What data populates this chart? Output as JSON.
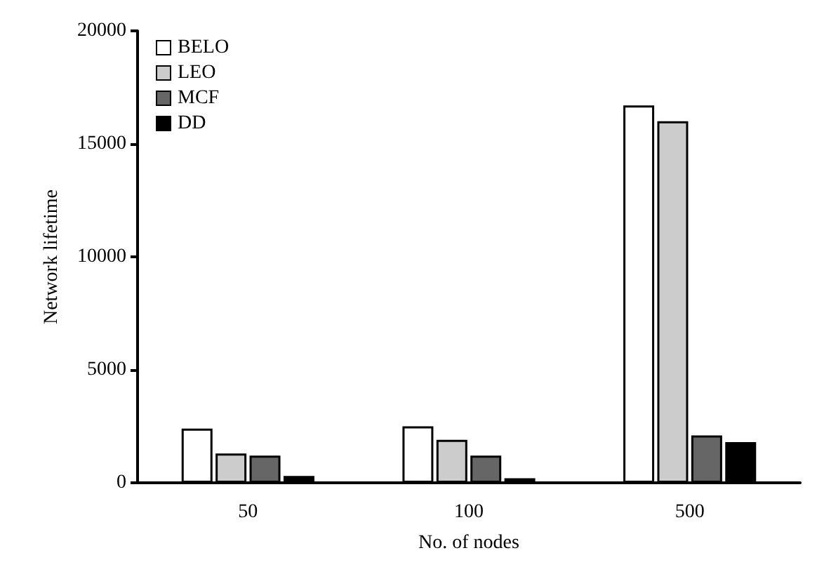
{
  "chart_data": {
    "type": "bar",
    "xlabel": "No. of nodes",
    "ylabel": "Network lifetime",
    "categories": [
      "50",
      "100",
      "500"
    ],
    "series": [
      {
        "name": "BELO",
        "color": "#ffffff",
        "values": [
          2400,
          2500,
          16700
        ]
      },
      {
        "name": "LEO",
        "color": "#cccccc",
        "values": [
          1300,
          1900,
          16000
        ]
      },
      {
        "name": "MCF",
        "color": "#666666",
        "values": [
          1200,
          1200,
          2100
        ]
      },
      {
        "name": "DD",
        "color": "#000000",
        "values": [
          300,
          200,
          1800
        ]
      }
    ],
    "ylim": [
      0,
      20000
    ],
    "yticks": [
      0,
      5000,
      10000,
      15000,
      20000
    ],
    "grid": false,
    "legend": "top left"
  }
}
